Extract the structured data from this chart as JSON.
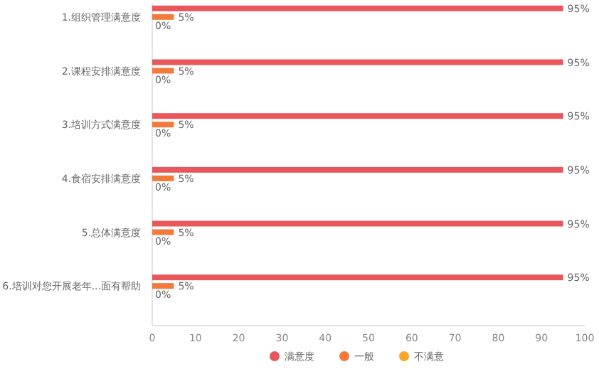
{
  "chart_data": {
    "type": "bar",
    "orientation": "horizontal",
    "categories": [
      "1.组织管理满意度",
      "2.课程安排满意度",
      "3.培训方式满意度",
      "4.食宿安排满意度",
      "5.总体满意度",
      "6.培训对您开展老年...面有帮助"
    ],
    "series": [
      {
        "name": "满意度",
        "color": "#e8585a",
        "values": [
          95,
          95,
          95,
          95,
          95,
          95
        ],
        "value_labels": [
          "95%",
          "95%",
          "95%",
          "95%",
          "95%",
          "95%"
        ]
      },
      {
        "name": "一般",
        "color": "#f47a3c",
        "values": [
          5,
          5,
          5,
          5,
          5,
          5
        ],
        "value_labels": [
          "5%",
          "5%",
          "5%",
          "5%",
          "5%",
          "5%"
        ]
      },
      {
        "name": "不满意",
        "color": "#f9a52b",
        "values": [
          0,
          0,
          0,
          0,
          0,
          0
        ],
        "value_labels": [
          "0%",
          "0%",
          "0%",
          "0%",
          "0%",
          "0%"
        ]
      }
    ],
    "xlim": [
      0,
      100
    ],
    "xticks": [
      0,
      10,
      20,
      30,
      40,
      50,
      60,
      70,
      80,
      90,
      100
    ],
    "grid": false,
    "legend": "bottom"
  }
}
